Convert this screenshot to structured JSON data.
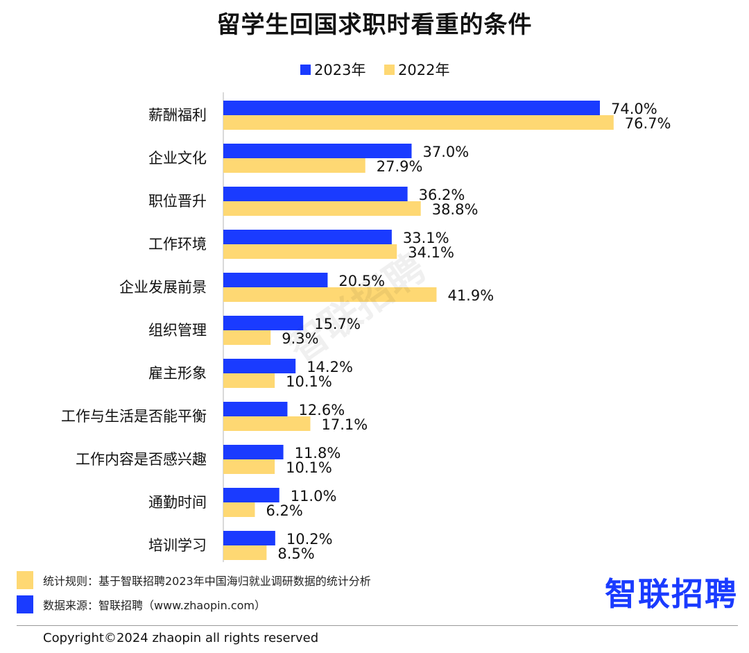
{
  "title": "留学生回国求职时看重的条件",
  "colors": {
    "y2023": "#1a3bff",
    "y2022": "#fed873"
  },
  "chart_data": {
    "type": "bar",
    "orientation": "horizontal",
    "title": "留学生回国求职时看重的条件",
    "categories": [
      "薪酬福利",
      "企业文化",
      "职位晋升",
      "工作环境",
      "企业发展前景",
      "组织管理",
      "雇主形象",
      "工作与生活是否能平衡",
      "工作内容是否感兴趣",
      "通勤时间",
      "培训学习"
    ],
    "series": [
      {
        "name": "2023年",
        "values": [
          74.0,
          37.0,
          36.2,
          33.1,
          20.5,
          15.7,
          14.2,
          12.6,
          11.8,
          11.0,
          10.2
        ]
      },
      {
        "name": "2022年",
        "values": [
          76.7,
          27.9,
          38.8,
          34.1,
          41.9,
          9.3,
          10.1,
          17.1,
          10.1,
          6.2,
          8.5
        ]
      }
    ],
    "value_suffix": "%",
    "legend_position": "top",
    "grid": false
  },
  "footer": {
    "rule_text": "统计规则：基于智联招聘2023年中国海归就业调研数据的统计分析",
    "source_text": "数据来源：智联招聘（www.zhaopin.com）",
    "logo_text": "智联招聘",
    "watermark_text": "智联招聘",
    "copyright": "Copyright©2024 zhaopin all rights reserved"
  }
}
